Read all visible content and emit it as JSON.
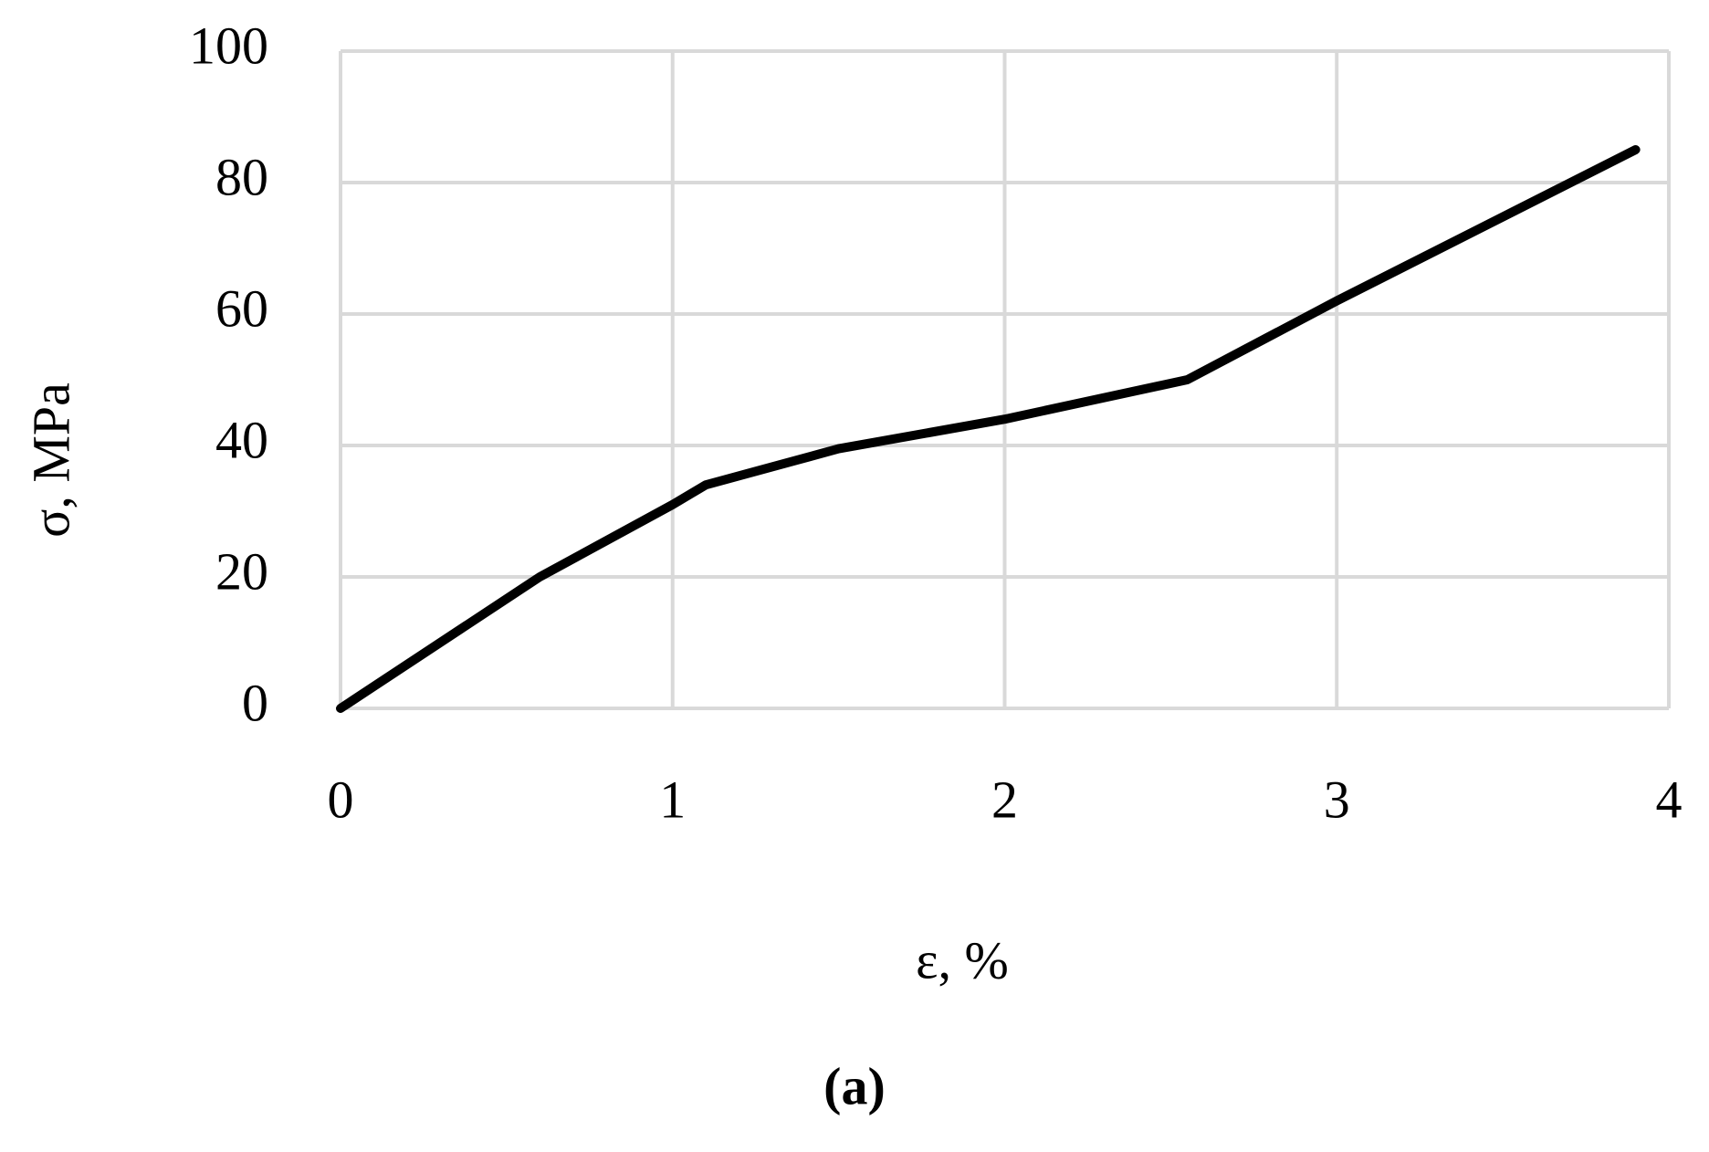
{
  "chart_data": {
    "type": "line",
    "x_label": "ε, %",
    "y_label": "σ, MPa",
    "caption": "(a)",
    "x": [
      0,
      0.6,
      1,
      1.1,
      1.5,
      2,
      2.55,
      3,
      3.9
    ],
    "values": [
      0,
      20,
      31,
      34,
      39.5,
      44,
      50,
      62,
      85
    ],
    "color": "#000000",
    "xlim": [
      0,
      4
    ],
    "xticks": [
      0,
      1,
      2,
      3,
      4
    ],
    "ylim": [
      0,
      100
    ],
    "yticks": [
      0,
      20,
      40,
      60,
      80,
      100
    ],
    "grid": true
  }
}
